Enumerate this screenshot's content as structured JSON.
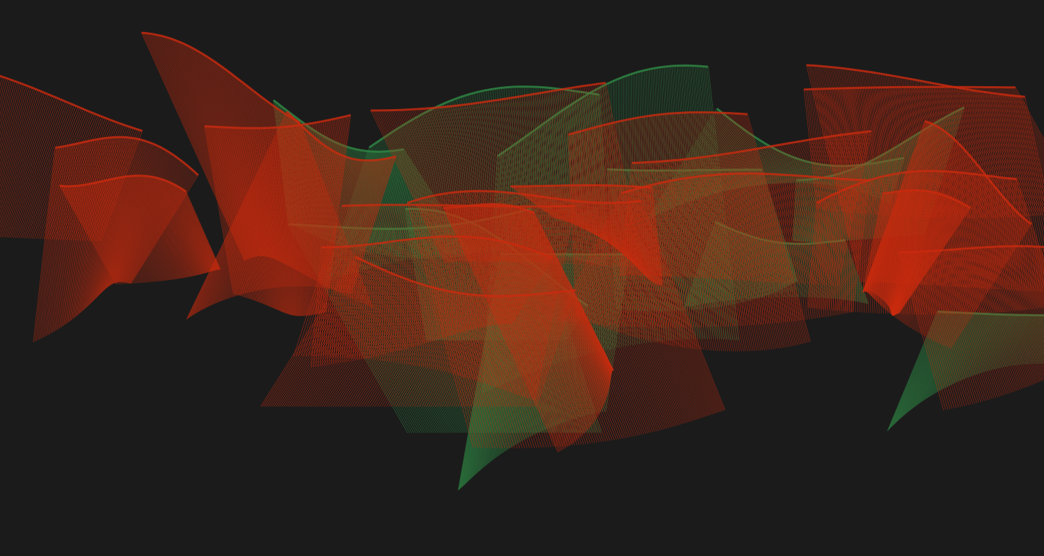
{
  "artwork": {
    "background_color": "#1b1b1b",
    "palette": {
      "red": "#cc2b0f",
      "green": "#2f8a45"
    },
    "layers": {
      "red_ribbon_count": 22,
      "green_ribbon_count": 11,
      "threads_per_ribbon": 130
    }
  }
}
